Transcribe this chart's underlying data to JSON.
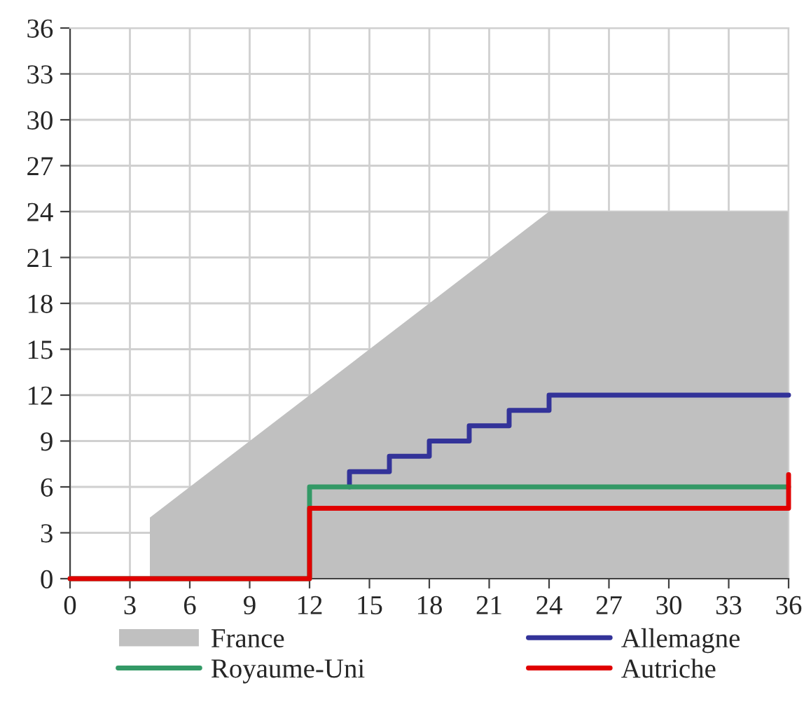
{
  "chart_data": {
    "type": "line",
    "series": [
      {
        "name": "France",
        "type": "area",
        "color": "#c0c0c0",
        "x": [
          0,
          4,
          4,
          24,
          36
        ],
        "values": [
          0,
          0,
          4,
          24,
          24
        ]
      },
      {
        "name": "Allemagne",
        "color": "#333399",
        "x": [
          14,
          14,
          16,
          16,
          18,
          18,
          20,
          20,
          22,
          22,
          24,
          24,
          36
        ],
        "values": [
          6,
          7,
          7,
          8,
          8,
          9,
          9,
          10,
          10,
          11,
          11,
          12,
          12
        ]
      },
      {
        "name": "Royaume-Uni",
        "color": "#339966",
        "x": [
          0,
          12,
          12,
          36
        ],
        "values": [
          0,
          0,
          6,
          6
        ]
      },
      {
        "name": "Autriche",
        "color": "#e00000",
        "x": [
          0,
          12,
          12,
          36,
          36
        ],
        "values": [
          0,
          0,
          4.6,
          4.6,
          6.8
        ]
      }
    ],
    "xlim": [
      0,
      36
    ],
    "xticks": [
      0,
      3,
      6,
      9,
      12,
      15,
      18,
      21,
      24,
      27,
      30,
      33,
      36
    ],
    "ylim": [
      0,
      36
    ],
    "yticks": [
      0,
      3,
      6,
      9,
      12,
      15,
      18,
      21,
      24,
      27,
      30,
      33,
      36
    ],
    "grid": true,
    "legend": "bottom",
    "line_style": "solid",
    "marker": "none"
  }
}
